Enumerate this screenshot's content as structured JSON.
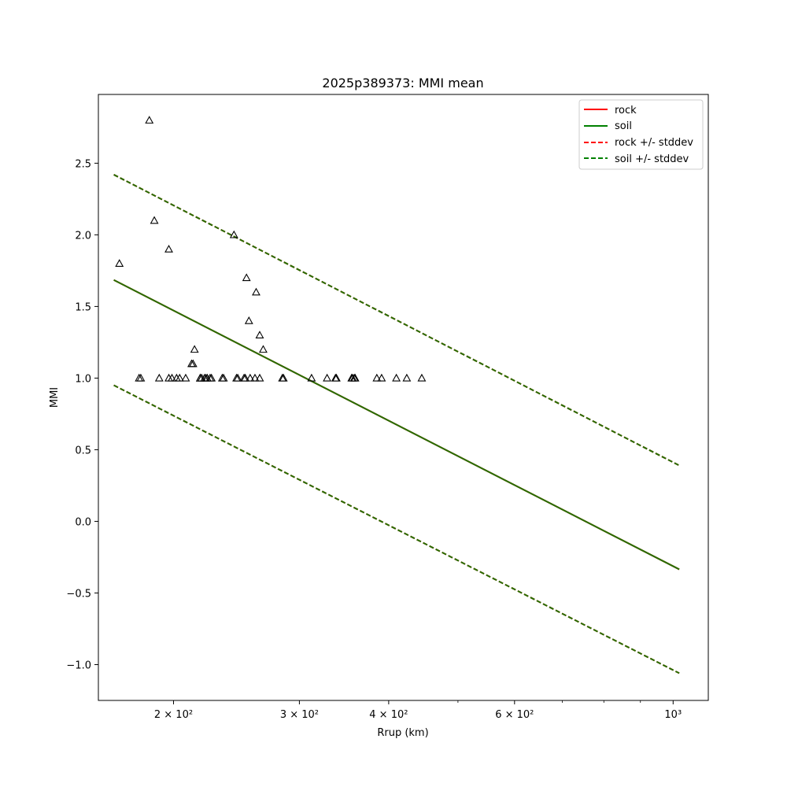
{
  "chart_data": {
    "type": "scatter",
    "title": "2025p389373: MMI mean",
    "xlabel": "Rrup (km)",
    "ylabel": "MMI",
    "x_scale": "log",
    "xlim": [
      157,
      1120
    ],
    "ylim": [
      -1.25,
      2.98
    ],
    "x_ticks": [
      {
        "value": 200,
        "label": "2 × 10²"
      },
      {
        "value": 300,
        "label": "3 × 10²"
      },
      {
        "value": 400,
        "label": "4 × 10²"
      },
      {
        "value": 600,
        "label": "6 × 10²"
      },
      {
        "value": 1000,
        "label": "10³"
      }
    ],
    "x_minor_ticks": [
      500,
      700,
      800,
      900
    ],
    "y_ticks": [
      {
        "value": -1.0,
        "label": "−1.0"
      },
      {
        "value": -0.5,
        "label": "−0.5"
      },
      {
        "value": 0.0,
        "label": "0.0"
      },
      {
        "value": 0.5,
        "label": "0.5"
      },
      {
        "value": 1.0,
        "label": "1.0"
      },
      {
        "value": 1.5,
        "label": "1.5"
      },
      {
        "value": 2.0,
        "label": "2.0"
      },
      {
        "value": 2.5,
        "label": "2.5"
      }
    ],
    "grid": false,
    "legend_position": "top-right",
    "series": [
      {
        "name": "rock",
        "kind": "line",
        "style": "solid",
        "color": "#ff0000",
        "x": [
          165,
          1020
        ],
        "y": [
          1.685,
          -0.335
        ]
      },
      {
        "name": "soil",
        "kind": "line",
        "style": "solid",
        "color": "#008000",
        "x": [
          165,
          1020
        ],
        "y": [
          1.685,
          -0.335
        ]
      },
      {
        "name": "rock +/- stddev",
        "kind": "line",
        "style": "dashed",
        "color": "#ff0000",
        "x": [
          165,
          1020
        ],
        "y": [
          2.42,
          0.39
        ],
        "y2": [
          0.95,
          -1.06
        ]
      },
      {
        "name": "soil +/- stddev",
        "kind": "line",
        "style": "dashed",
        "color": "#008000",
        "x": [
          165,
          1020
        ],
        "y": [
          2.42,
          0.39
        ],
        "y2": [
          0.95,
          -1.06
        ]
      },
      {
        "name": "",
        "kind": "scatter",
        "marker": "triangle",
        "color": "#000000",
        "x": [
          168,
          185,
          188,
          197,
          212,
          213,
          214,
          218,
          243,
          253,
          255,
          261,
          264,
          267,
          179,
          180,
          191,
          197,
          199,
          202,
          204,
          208,
          218,
          218,
          219,
          221,
          222,
          223,
          225,
          226,
          234,
          235,
          245,
          246,
          251,
          252,
          256,
          260,
          264,
          284,
          285,
          312,
          328,
          337,
          338,
          355,
          356,
          358,
          359,
          385,
          391,
          410,
          424,
          445
        ],
        "y": [
          1.8,
          2.8,
          2.1,
          1.9,
          1.1,
          1.1,
          1.2,
          1.0,
          2.0,
          1.7,
          1.4,
          1.6,
          1.3,
          1.2,
          1.0,
          1.0,
          1.0,
          1.0,
          1.0,
          1.0,
          1.0,
          1.0,
          1.0,
          1.0,
          1.0,
          1.0,
          1.0,
          1.0,
          1.0,
          1.0,
          1.0,
          1.0,
          1.0,
          1.0,
          1.0,
          1.0,
          1.0,
          1.0,
          1.0,
          1.0,
          1.0,
          1.0,
          1.0,
          1.0,
          1.0,
          1.0,
          1.0,
          1.0,
          1.0,
          1.0,
          1.0,
          1.0,
          1.0,
          1.0
        ]
      }
    ]
  },
  "legend": {
    "items": [
      {
        "label": "rock",
        "color": "#ff0000",
        "style": "solid"
      },
      {
        "label": "soil",
        "color": "#008000",
        "style": "solid"
      },
      {
        "label": "rock +/- stddev",
        "color": "#ff0000",
        "style": "dashed"
      },
      {
        "label": "soil +/- stddev",
        "color": "#008000",
        "style": "dashed"
      }
    ]
  }
}
